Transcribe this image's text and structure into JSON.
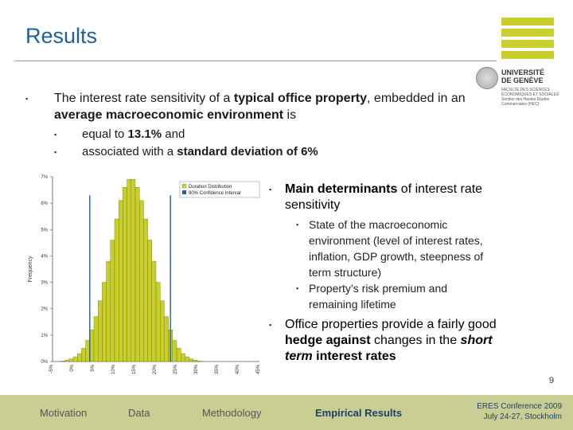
{
  "slide": {
    "title": "Results",
    "page_number": "9"
  },
  "logo": {
    "university_line1": "UNIVERSITÉ",
    "university_line2": "DE GENÈVE",
    "faculty": "FACULTÉ DES SCIENCES ÉCONOMIQUES ET SOCIALES Section des Hautes Etudes Commerciales (HEC)"
  },
  "bullets": {
    "main_pre": "The interest rate sensitivity of a ",
    "main_b1": "typical office property",
    "main_mid": ", embedded in an ",
    "main_b2": "average macroeconomic environment",
    "main_post": " is",
    "sub1_pre": "equal to ",
    "sub1_b": "13.1%",
    "sub1_post": " and",
    "sub2_pre": "associated with a ",
    "sub2_b": "standard deviation of 6%"
  },
  "right": {
    "b1_b": "Main determinants",
    "b1_post": " of interest rate sensitivity",
    "s1": "State of the macroeconomic environment (level of interest rates, inflation, GDP growth, steepness of term structure)",
    "s2": "Property’s risk premium and remaining lifetime",
    "b2_pre": "Office properties provide a fairly good ",
    "b2_b": "hedge against",
    "b2_mid": " changes in the ",
    "b2_bi": "short term",
    "b2_b2": " interest rates"
  },
  "footer": {
    "nav": [
      "Motivation",
      "Data",
      "Methodology",
      "Empirical Results"
    ],
    "active_index": 3,
    "conference_line1": "ERES Conference 2009",
    "conference_line2": "July 24-27, Stockholm"
  },
  "colors": {
    "title": "#1f5f9a",
    "bar": "#c9cf2a",
    "ci_line": "#2a5f8a",
    "footer_bg": "#c9cf92"
  },
  "chart_data": {
    "type": "bar",
    "ylabel": "Frequency",
    "yticks": [
      "0%",
      "1%",
      "2%",
      "3%",
      "4%",
      "5%",
      "6%",
      "7%"
    ],
    "ylim": [
      0,
      7
    ],
    "xticks": [
      "-5%",
      "0%",
      "5%",
      "10%",
      "15%",
      "20%",
      "25%",
      "30%",
      "35%",
      "40%",
      "45%"
    ],
    "xlim": [
      -5,
      45
    ],
    "legend": [
      {
        "name": "Duration Distribution"
      },
      {
        "name": "90% Confidence Interval"
      }
    ],
    "bin_width": 1,
    "bins_start": -3,
    "values": [
      0.02,
      0.05,
      0.1,
      0.18,
      0.3,
      0.5,
      0.8,
      1.2,
      1.7,
      2.3,
      3.0,
      3.8,
      4.6,
      5.4,
      6.1,
      6.6,
      6.9,
      6.9,
      6.6,
      6.1,
      5.4,
      4.6,
      3.8,
      3.0,
      2.3,
      1.7,
      1.2,
      0.8,
      0.5,
      0.3,
      0.18,
      0.1,
      0.05,
      0.02
    ],
    "ci_lines": [
      4.0,
      23.5
    ]
  }
}
